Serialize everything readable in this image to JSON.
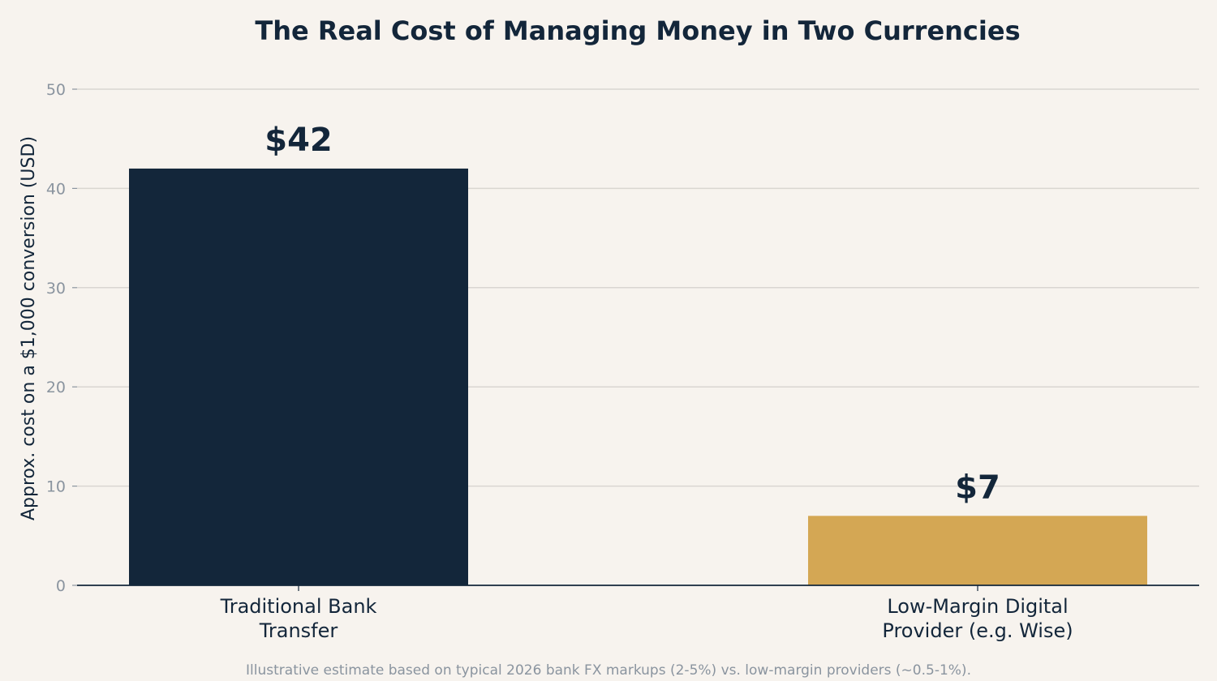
{
  "chart_data": {
    "type": "bar",
    "title": "The Real Cost of Managing Money in Two Currencies",
    "xlabel": "",
    "ylabel": "Approx. cost on a $1,000 conversion (USD)",
    "categories": [
      [
        "Traditional Bank",
        "Transfer"
      ],
      [
        "Low-Margin Digital",
        "Provider (e.g. Wise)"
      ]
    ],
    "values": [
      42,
      7
    ],
    "value_labels": [
      "$42",
      "$7"
    ],
    "colors": [
      "#13263a",
      "#d4a754"
    ],
    "ylim": [
      0,
      50
    ],
    "yticks": [
      0,
      10,
      20,
      30,
      40,
      50
    ],
    "grid": true,
    "footnote": "Illustrative estimate based on typical 2026 bank FX markups (2-5%) vs. low-margin providers (~0.5-1%)."
  }
}
